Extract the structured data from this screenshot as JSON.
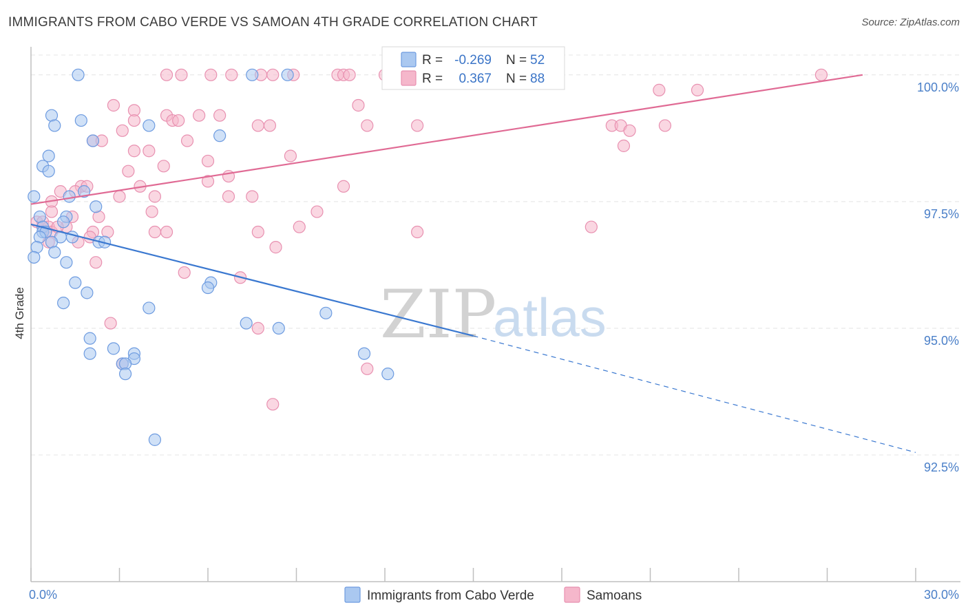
{
  "title": "IMMIGRANTS FROM CABO VERDE VS SAMOAN 4TH GRADE CORRELATION CHART",
  "source": "Source: ZipAtlas.com",
  "watermark": {
    "zip": "ZIP",
    "atlas": "atlas"
  },
  "colors": {
    "blue_fill": "#aac8f0",
    "blue_stroke": "#6d9be0",
    "blue_line": "#3a78d0",
    "pink_fill": "#f5b7cb",
    "pink_stroke": "#e890b0",
    "pink_line": "#e06a94",
    "grid": "#e4e4e4",
    "axis": "#bfbfbf",
    "tick_text": "#4a7fc8"
  },
  "chart_data": {
    "type": "scatter",
    "title": "IMMIGRANTS FROM CABO VERDE VS SAMOAN 4TH GRADE CORRELATION CHART",
    "xlabel": "",
    "ylabel": "4th Grade",
    "xlim": [
      0,
      30
    ],
    "ylim": [
      90.0,
      100.5
    ],
    "x_tick_labels": [
      {
        "value": 0,
        "label": "0.0%"
      },
      {
        "value": 30,
        "label": "30.0%"
      }
    ],
    "y_tick_labels": [
      {
        "value": 100.0,
        "label": "100.0%"
      },
      {
        "value": 97.5,
        "label": "97.5%"
      },
      {
        "value": 95.0,
        "label": "95.0%"
      },
      {
        "value": 92.5,
        "label": "92.5%"
      }
    ],
    "legend_stats": [
      {
        "r_label": "R =",
        "r": "-0.269",
        "n_label": "N =",
        "n": "52"
      },
      {
        "r_label": "R =",
        "r": "0.367",
        "n_label": "N =",
        "n": "88"
      }
    ],
    "series": [
      {
        "name": "Immigrants from Cabo Verde",
        "color": "blue",
        "trend": {
          "x0": 0.0,
          "y0": 97.05,
          "x1": 15.0,
          "y1": 94.85,
          "dash_to_x": 30.0,
          "dash_to_y": 92.55
        },
        "points": [
          [
            1.6,
            100.0
          ],
          [
            7.5,
            100.0
          ],
          [
            8.7,
            100.0
          ],
          [
            0.7,
            99.2
          ],
          [
            0.8,
            99.0
          ],
          [
            1.7,
            99.1
          ],
          [
            4.0,
            99.0
          ],
          [
            2.1,
            98.7
          ],
          [
            6.4,
            98.8
          ],
          [
            0.6,
            98.4
          ],
          [
            0.4,
            98.2
          ],
          [
            0.6,
            98.1
          ],
          [
            0.1,
            97.6
          ],
          [
            1.3,
            97.6
          ],
          [
            1.8,
            97.7
          ],
          [
            2.2,
            97.4
          ],
          [
            0.3,
            97.2
          ],
          [
            1.2,
            97.2
          ],
          [
            1.1,
            97.1
          ],
          [
            0.4,
            97.0
          ],
          [
            0.4,
            96.9
          ],
          [
            0.5,
            96.9
          ],
          [
            0.3,
            96.8
          ],
          [
            1.0,
            96.8
          ],
          [
            1.4,
            96.8
          ],
          [
            2.3,
            96.7
          ],
          [
            2.5,
            96.7
          ],
          [
            0.7,
            96.7
          ],
          [
            0.2,
            96.6
          ],
          [
            0.8,
            96.5
          ],
          [
            0.1,
            96.4
          ],
          [
            1.2,
            96.3
          ],
          [
            1.5,
            95.9
          ],
          [
            6.1,
            95.9
          ],
          [
            6.0,
            95.8
          ],
          [
            1.9,
            95.7
          ],
          [
            1.1,
            95.5
          ],
          [
            4.0,
            95.4
          ],
          [
            10.0,
            95.3
          ],
          [
            7.3,
            95.1
          ],
          [
            8.4,
            95.0
          ],
          [
            2.0,
            94.8
          ],
          [
            2.8,
            94.6
          ],
          [
            3.5,
            94.5
          ],
          [
            2.0,
            94.5
          ],
          [
            11.3,
            94.5
          ],
          [
            3.5,
            94.4
          ],
          [
            3.1,
            94.3
          ],
          [
            3.2,
            94.3
          ],
          [
            3.2,
            94.1
          ],
          [
            12.1,
            94.1
          ],
          [
            4.2,
            92.8
          ]
        ]
      },
      {
        "name": "Samoans",
        "color": "pink",
        "trend": {
          "x0": 0.0,
          "y0": 97.45,
          "x1": 28.2,
          "y1": 100.0
        },
        "points": [
          [
            4.6,
            100.0
          ],
          [
            5.1,
            100.0
          ],
          [
            6.1,
            100.0
          ],
          [
            6.8,
            100.0
          ],
          [
            7.8,
            100.0
          ],
          [
            8.2,
            100.0
          ],
          [
            8.9,
            100.0
          ],
          [
            10.4,
            100.0
          ],
          [
            10.6,
            100.0
          ],
          [
            10.8,
            100.0
          ],
          [
            12.0,
            100.0
          ],
          [
            13.9,
            100.0
          ],
          [
            26.8,
            100.0
          ],
          [
            21.3,
            99.7
          ],
          [
            22.6,
            99.7
          ],
          [
            2.8,
            99.4
          ],
          [
            11.1,
            99.4
          ],
          [
            3.5,
            99.3
          ],
          [
            4.6,
            99.2
          ],
          [
            5.7,
            99.2
          ],
          [
            6.4,
            99.2
          ],
          [
            3.5,
            99.1
          ],
          [
            4.8,
            99.1
          ],
          [
            5.0,
            99.1
          ],
          [
            7.7,
            99.0
          ],
          [
            8.1,
            99.0
          ],
          [
            11.4,
            99.0
          ],
          [
            13.1,
            99.0
          ],
          [
            19.7,
            99.0
          ],
          [
            20.0,
            99.0
          ],
          [
            21.5,
            99.0
          ],
          [
            3.1,
            98.9
          ],
          [
            2.1,
            98.7
          ],
          [
            2.4,
            98.7
          ],
          [
            5.3,
            98.7
          ],
          [
            20.3,
            98.9
          ],
          [
            20.1,
            98.6
          ],
          [
            3.5,
            98.5
          ],
          [
            4.0,
            98.5
          ],
          [
            8.8,
            98.4
          ],
          [
            6.0,
            98.3
          ],
          [
            4.5,
            98.2
          ],
          [
            3.3,
            98.1
          ],
          [
            6.7,
            98.0
          ],
          [
            6.0,
            97.9
          ],
          [
            1.7,
            97.8
          ],
          [
            1.9,
            97.8
          ],
          [
            3.7,
            97.8
          ],
          [
            10.6,
            97.8
          ],
          [
            1.0,
            97.7
          ],
          [
            1.5,
            97.7
          ],
          [
            3.0,
            97.6
          ],
          [
            6.7,
            97.6
          ],
          [
            7.5,
            97.6
          ],
          [
            4.2,
            97.6
          ],
          [
            0.7,
            97.5
          ],
          [
            4.1,
            97.3
          ],
          [
            9.7,
            97.3
          ],
          [
            0.7,
            97.3
          ],
          [
            2.3,
            97.2
          ],
          [
            1.4,
            97.2
          ],
          [
            0.2,
            97.1
          ],
          [
            0.4,
            97.1
          ],
          [
            0.6,
            97.0
          ],
          [
            1.2,
            97.0
          ],
          [
            9.1,
            97.0
          ],
          [
            0.4,
            97.0
          ],
          [
            0.7,
            96.9
          ],
          [
            2.1,
            96.9
          ],
          [
            2.6,
            96.9
          ],
          [
            4.2,
            96.9
          ],
          [
            4.6,
            96.9
          ],
          [
            7.7,
            96.9
          ],
          [
            13.1,
            96.9
          ],
          [
            19.0,
            97.0
          ],
          [
            2.0,
            96.8
          ],
          [
            1.6,
            96.7
          ],
          [
            0.6,
            96.7
          ],
          [
            8.3,
            96.6
          ],
          [
            2.2,
            96.3
          ],
          [
            5.2,
            96.1
          ],
          [
            7.1,
            96.0
          ],
          [
            2.7,
            95.1
          ],
          [
            7.7,
            95.0
          ],
          [
            3.1,
            94.3
          ],
          [
            11.4,
            94.2
          ],
          [
            8.2,
            93.5
          ],
          [
            0.9,
            97.0
          ]
        ]
      }
    ],
    "legend_bottom": [
      "Immigrants from Cabo Verde",
      "Samoans"
    ]
  }
}
